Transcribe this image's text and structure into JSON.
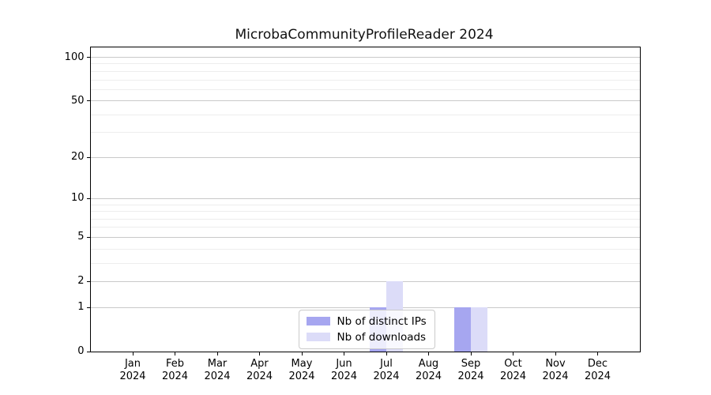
{
  "chart_data": {
    "type": "bar",
    "title": "MicrobaCommunityProfileReader 2024",
    "categories": [
      "Jan",
      "Feb",
      "Mar",
      "Apr",
      "May",
      "Jun",
      "Jul",
      "Aug",
      "Sep",
      "Oct",
      "Nov",
      "Dec"
    ],
    "category_year": "2024",
    "series": [
      {
        "name": "Nb of distinct IPs",
        "color": "#a6a6f0",
        "values": [
          0,
          0,
          0,
          0,
          0,
          0,
          1,
          0,
          1,
          0,
          0,
          0
        ]
      },
      {
        "name": "Nb of downloads",
        "color": "#dcdcf8",
        "values": [
          0,
          0,
          0,
          0,
          0,
          0,
          2,
          0,
          1,
          0,
          0,
          0
        ]
      }
    ],
    "yscale": "log1p",
    "ylim": [
      0,
      100
    ],
    "yticks_major": [
      0,
      1,
      2,
      5,
      10,
      20,
      50,
      100
    ],
    "yticks_minor": [
      3,
      4,
      6,
      7,
      8,
      9,
      30,
      40,
      60,
      70,
      80,
      90
    ],
    "grid": "horizontal, major and minor",
    "legend_position": "lower center",
    "colors": {
      "major_grid": "#c9c9c9",
      "minor_grid": "#ededed",
      "axis": "#000000",
      "background": "#ffffff"
    }
  }
}
